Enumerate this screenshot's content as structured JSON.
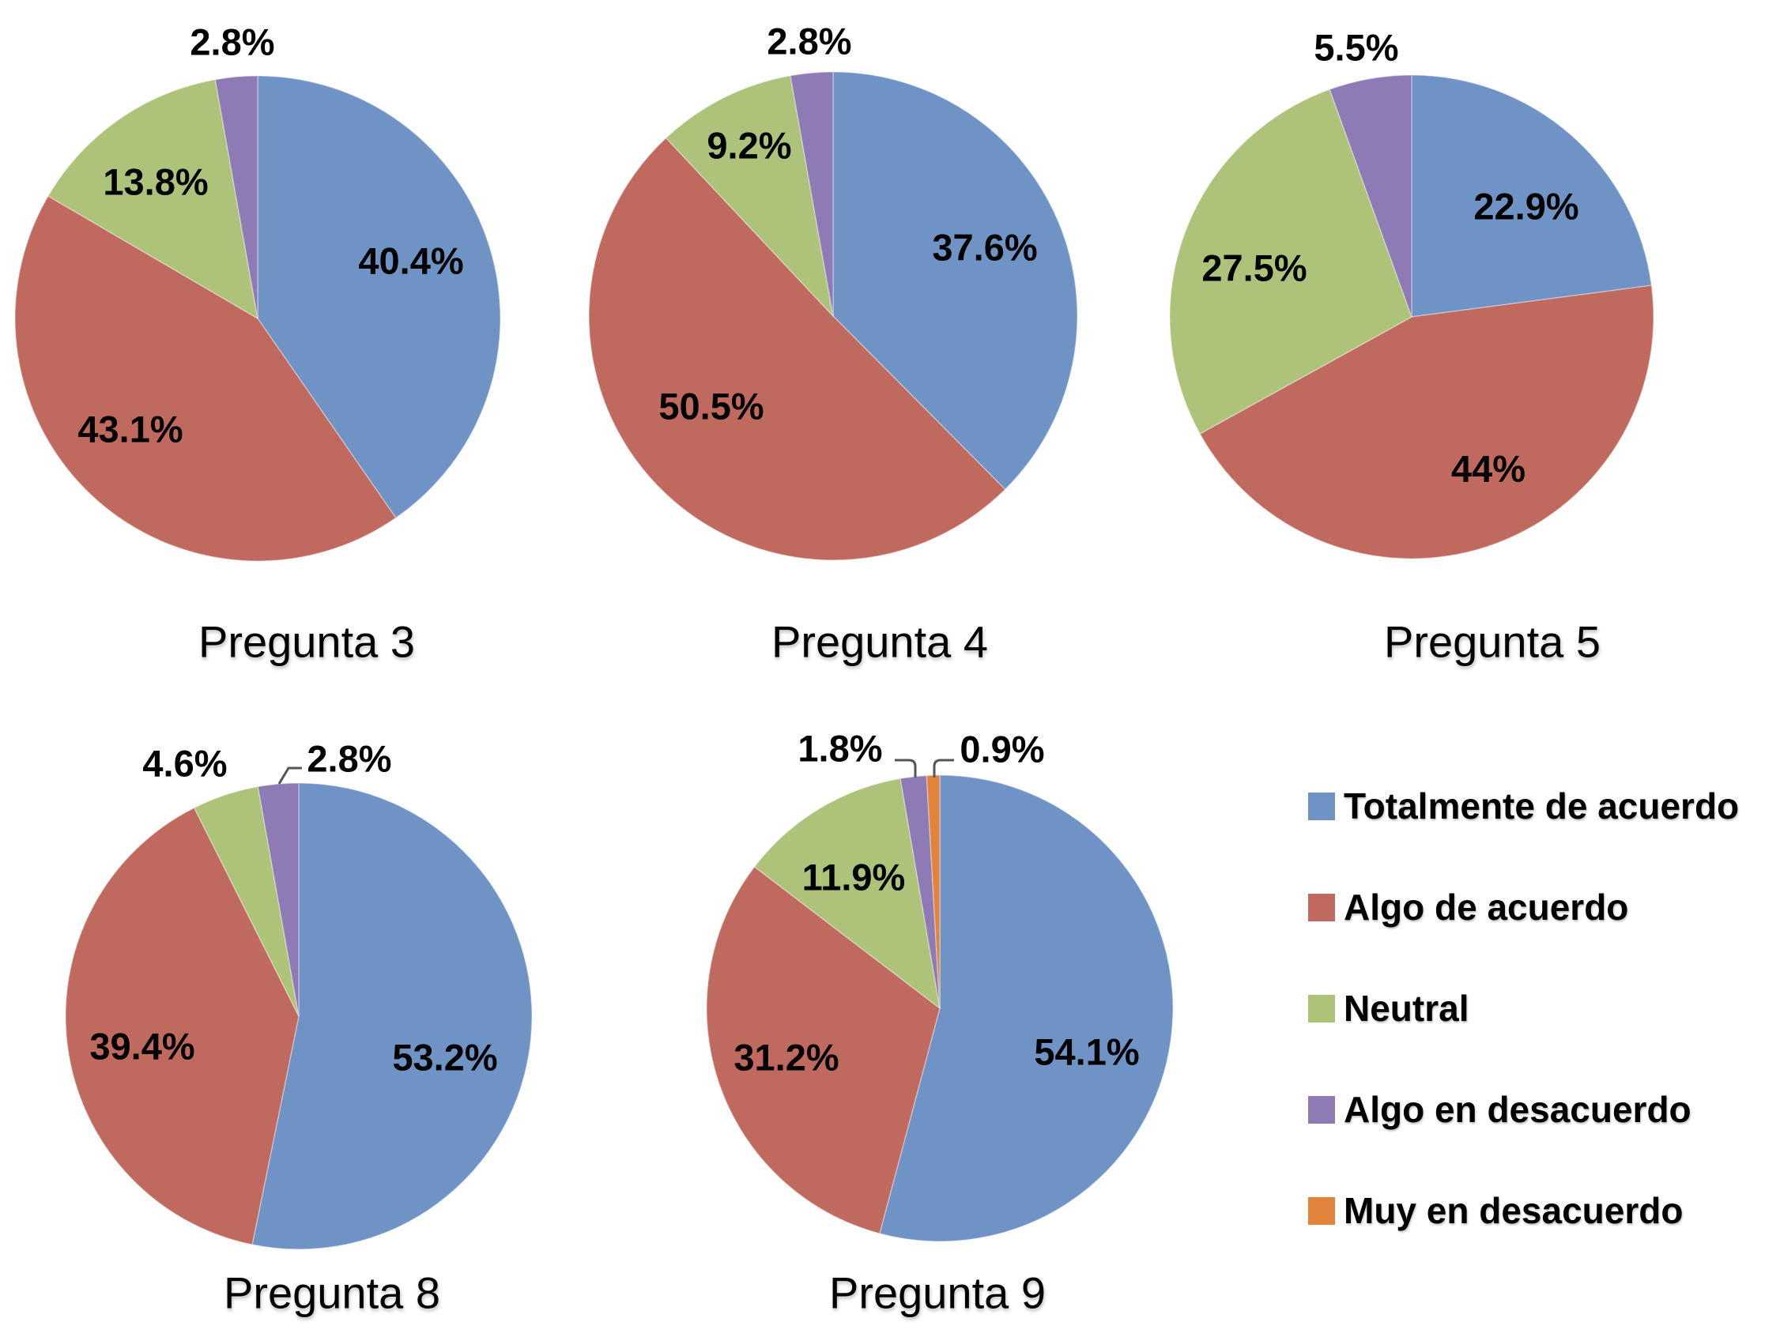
{
  "legend": {
    "items": [
      {
        "label": "Totalmente de acuerdo",
        "color": "#6f93c5"
      },
      {
        "label": "Algo de acuerdo",
        "color": "#c0695f"
      },
      {
        "label": "Neutral",
        "color": "#adc379"
      },
      {
        "label": "Algo en desacuerdo",
        "color": "#8e7ab5"
      },
      {
        "label": "Muy en desacuerdo",
        "color": "#e0843c"
      }
    ]
  },
  "chart_data": [
    {
      "type": "pie",
      "title": "Pregunta 3",
      "categories": [
        "Totalmente de acuerdo",
        "Algo de acuerdo",
        "Neutral",
        "Algo en desacuerdo"
      ],
      "values": [
        40.4,
        43.1,
        13.8,
        2.8
      ],
      "labels": [
        "40.4%",
        "43.1%",
        "13.8%",
        "2.8%"
      ],
      "legend": "right"
    },
    {
      "type": "pie",
      "title": "Pregunta 4",
      "categories": [
        "Totalmente de acuerdo",
        "Algo de acuerdo",
        "Neutral",
        "Algo en desacuerdo"
      ],
      "values": [
        37.6,
        50.5,
        9.2,
        2.8
      ],
      "labels": [
        "37.6%",
        "50.5%",
        "9.2%",
        "2.8%"
      ],
      "legend": "right"
    },
    {
      "type": "pie",
      "title": "Pregunta 5",
      "categories": [
        "Totalmente de acuerdo",
        "Algo de acuerdo",
        "Neutral",
        "Algo en desacuerdo"
      ],
      "values": [
        22.9,
        44,
        27.5,
        5.5
      ],
      "labels": [
        "22.9%",
        "44%",
        "27.5%",
        "5.5%"
      ],
      "legend": "right"
    },
    {
      "type": "pie",
      "title": "Pregunta 8",
      "categories": [
        "Totalmente de acuerdo",
        "Algo de acuerdo",
        "Neutral",
        "Algo en desacuerdo"
      ],
      "values": [
        53.2,
        39.4,
        4.6,
        2.8
      ],
      "labels": [
        "53.2%",
        "39.4%",
        "4.6%",
        "2.8%"
      ],
      "legend": "right"
    },
    {
      "type": "pie",
      "title": "Pregunta 9",
      "categories": [
        "Totalmente de acuerdo",
        "Algo de acuerdo",
        "Neutral",
        "Algo en desacuerdo",
        "Muy en desacuerdo"
      ],
      "values": [
        54.1,
        31.2,
        11.9,
        1.8,
        0.9
      ],
      "labels": [
        "54.1%",
        "31.2%",
        "11.9%",
        "1.8%",
        "0.9%"
      ],
      "legend": "right"
    }
  ]
}
